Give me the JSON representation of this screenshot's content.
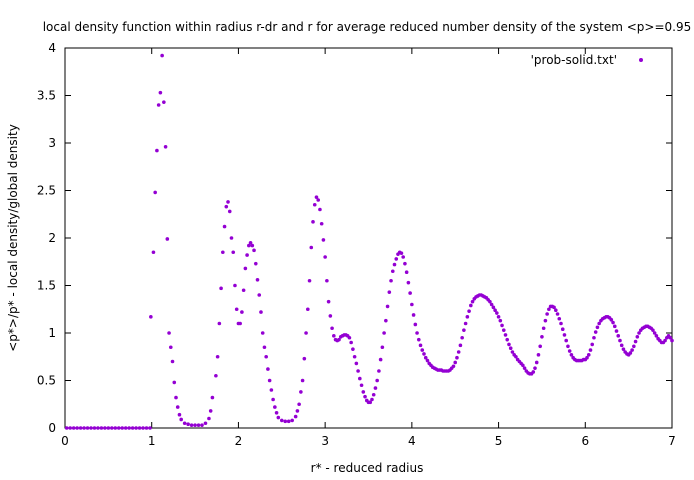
{
  "chart_data": {
    "type": "scatter",
    "title": "local density function within radius r-dr and r for average reduced number density of the system <p>=0.95",
    "xlabel": "r* - reduced radius",
    "ylabel": "<p*>/p* - local density/global density",
    "xlim": [
      0,
      7
    ],
    "ylim": [
      0,
      4
    ],
    "xticks": [
      "0",
      "1",
      "2",
      "3",
      "4",
      "5",
      "6",
      "7"
    ],
    "yticks": [
      "0",
      "0.5",
      "1",
      "1.5",
      "2",
      "2.5",
      "3",
      "3.5",
      "4"
    ],
    "grid": false,
    "legend_position": "top-right",
    "series": [
      {
        "name": "'prob-solid.txt'",
        "color": "#9400d3",
        "marker": "dot",
        "points": [
          [
            0.02,
            0
          ],
          [
            0.06,
            0
          ],
          [
            0.1,
            0
          ],
          [
            0.14,
            0
          ],
          [
            0.18,
            0
          ],
          [
            0.22,
            0
          ],
          [
            0.26,
            0
          ],
          [
            0.3,
            0
          ],
          [
            0.34,
            0
          ],
          [
            0.38,
            0
          ],
          [
            0.42,
            0
          ],
          [
            0.46,
            0
          ],
          [
            0.5,
            0
          ],
          [
            0.54,
            0
          ],
          [
            0.58,
            0
          ],
          [
            0.62,
            0
          ],
          [
            0.66,
            0
          ],
          [
            0.7,
            0
          ],
          [
            0.74,
            0
          ],
          [
            0.78,
            0
          ],
          [
            0.82,
            0
          ],
          [
            0.86,
            0
          ],
          [
            0.9,
            0
          ],
          [
            0.94,
            0
          ],
          [
            0.98,
            0
          ],
          [
            0.99,
            1.17
          ],
          [
            1.02,
            1.85
          ],
          [
            1.04,
            2.48
          ],
          [
            1.06,
            2.92
          ],
          [
            1.08,
            3.4
          ],
          [
            1.1,
            3.53
          ],
          [
            1.12,
            3.92
          ],
          [
            1.14,
            3.43
          ],
          [
            1.16,
            2.96
          ],
          [
            1.18,
            1.99
          ],
          [
            1.2,
            1.0
          ],
          [
            1.22,
            0.85
          ],
          [
            1.24,
            0.7
          ],
          [
            1.26,
            0.48
          ],
          [
            1.28,
            0.32
          ],
          [
            1.3,
            0.22
          ],
          [
            1.32,
            0.14
          ],
          [
            1.34,
            0.09
          ],
          [
            1.38,
            0.05
          ],
          [
            1.42,
            0.04
          ],
          [
            1.46,
            0.03
          ],
          [
            1.5,
            0.03
          ],
          [
            1.54,
            0.03
          ],
          [
            1.58,
            0.03
          ],
          [
            1.62,
            0.05
          ],
          [
            1.66,
            0.1
          ],
          [
            1.68,
            0.18
          ],
          [
            1.7,
            0.32
          ],
          [
            1.74,
            0.55
          ],
          [
            1.76,
            0.75
          ],
          [
            1.78,
            1.1
          ],
          [
            1.8,
            1.47
          ],
          [
            1.82,
            1.85
          ],
          [
            1.84,
            2.12
          ],
          [
            1.86,
            2.33
          ],
          [
            1.88,
            2.38
          ],
          [
            1.9,
            2.28
          ],
          [
            1.92,
            2.0
          ],
          [
            1.94,
            1.85
          ],
          [
            1.96,
            1.5
          ],
          [
            1.98,
            1.25
          ],
          [
            2.0,
            1.1
          ],
          [
            2.02,
            1.1
          ],
          [
            2.04,
            1.22
          ],
          [
            2.06,
            1.45
          ],
          [
            2.08,
            1.68
          ],
          [
            2.1,
            1.82
          ],
          [
            2.12,
            1.92
          ],
          [
            2.14,
            1.95
          ],
          [
            2.16,
            1.92
          ],
          [
            2.18,
            1.87
          ],
          [
            2.2,
            1.73
          ],
          [
            2.22,
            1.56
          ],
          [
            2.24,
            1.4
          ],
          [
            2.26,
            1.22
          ],
          [
            2.28,
            1.0
          ],
          [
            2.3,
            0.85
          ],
          [
            2.32,
            0.75
          ],
          [
            2.34,
            0.62
          ],
          [
            2.36,
            0.5
          ],
          [
            2.38,
            0.4
          ],
          [
            2.4,
            0.3
          ],
          [
            2.42,
            0.22
          ],
          [
            2.44,
            0.16
          ],
          [
            2.46,
            0.11
          ],
          [
            2.5,
            0.08
          ],
          [
            2.54,
            0.07
          ],
          [
            2.58,
            0.07
          ],
          [
            2.62,
            0.08
          ],
          [
            2.66,
            0.12
          ],
          [
            2.68,
            0.18
          ],
          [
            2.7,
            0.25
          ],
          [
            2.72,
            0.38
          ],
          [
            2.74,
            0.5
          ],
          [
            2.76,
            0.73
          ],
          [
            2.78,
            1.0
          ],
          [
            2.8,
            1.25
          ],
          [
            2.82,
            1.55
          ],
          [
            2.84,
            1.9
          ],
          [
            2.86,
            2.17
          ],
          [
            2.88,
            2.35
          ],
          [
            2.9,
            2.43
          ],
          [
            2.92,
            2.4
          ],
          [
            2.94,
            2.3
          ],
          [
            2.96,
            2.15
          ],
          [
            2.98,
            1.98
          ],
          [
            3.0,
            1.8
          ],
          [
            3.02,
            1.55
          ],
          [
            3.04,
            1.33
          ],
          [
            3.06,
            1.18
          ],
          [
            3.08,
            1.05
          ],
          [
            3.1,
            0.97
          ],
          [
            3.12,
            0.93
          ],
          [
            3.14,
            0.92
          ],
          [
            3.16,
            0.93
          ],
          [
            3.18,
            0.96
          ],
          [
            3.2,
            0.97
          ],
          [
            3.22,
            0.98
          ],
          [
            3.24,
            0.98
          ],
          [
            3.26,
            0.97
          ],
          [
            3.28,
            0.95
          ],
          [
            3.3,
            0.9
          ],
          [
            3.32,
            0.83
          ],
          [
            3.34,
            0.75
          ],
          [
            3.36,
            0.68
          ],
          [
            3.38,
            0.6
          ],
          [
            3.4,
            0.52
          ],
          [
            3.42,
            0.45
          ],
          [
            3.44,
            0.38
          ],
          [
            3.46,
            0.33
          ],
          [
            3.48,
            0.29
          ],
          [
            3.5,
            0.27
          ],
          [
            3.52,
            0.27
          ],
          [
            3.54,
            0.3
          ],
          [
            3.56,
            0.35
          ],
          [
            3.58,
            0.42
          ],
          [
            3.6,
            0.5
          ],
          [
            3.62,
            0.6
          ],
          [
            3.64,
            0.72
          ],
          [
            3.66,
            0.85
          ],
          [
            3.68,
            1.0
          ],
          [
            3.7,
            1.13
          ],
          [
            3.72,
            1.28
          ],
          [
            3.74,
            1.43
          ],
          [
            3.76,
            1.55
          ],
          [
            3.78,
            1.65
          ],
          [
            3.8,
            1.72
          ],
          [
            3.82,
            1.78
          ],
          [
            3.84,
            1.83
          ],
          [
            3.86,
            1.85
          ],
          [
            3.88,
            1.84
          ],
          [
            3.9,
            1.8
          ],
          [
            3.92,
            1.73
          ],
          [
            3.94,
            1.64
          ],
          [
            3.96,
            1.53
          ],
          [
            3.98,
            1.42
          ],
          [
            4.0,
            1.3
          ],
          [
            4.02,
            1.19
          ],
          [
            4.04,
            1.09
          ],
          [
            4.06,
            1.0
          ],
          [
            4.08,
            0.93
          ],
          [
            4.1,
            0.87
          ],
          [
            4.12,
            0.82
          ],
          [
            4.14,
            0.78
          ],
          [
            4.16,
            0.74
          ],
          [
            4.18,
            0.71
          ],
          [
            4.2,
            0.68
          ],
          [
            4.22,
            0.66
          ],
          [
            4.24,
            0.64
          ],
          [
            4.26,
            0.63
          ],
          [
            4.28,
            0.62
          ],
          [
            4.3,
            0.61
          ],
          [
            4.32,
            0.61
          ],
          [
            4.34,
            0.61
          ],
          [
            4.36,
            0.6
          ],
          [
            4.38,
            0.6
          ],
          [
            4.4,
            0.6
          ],
          [
            4.42,
            0.6
          ],
          [
            4.44,
            0.61
          ],
          [
            4.46,
            0.63
          ],
          [
            4.48,
            0.65
          ],
          [
            4.5,
            0.69
          ],
          [
            4.52,
            0.74
          ],
          [
            4.54,
            0.8
          ],
          [
            4.56,
            0.87
          ],
          [
            4.58,
            0.95
          ],
          [
            4.6,
            1.03
          ],
          [
            4.62,
            1.1
          ],
          [
            4.64,
            1.17
          ],
          [
            4.66,
            1.23
          ],
          [
            4.68,
            1.29
          ],
          [
            4.7,
            1.33
          ],
          [
            4.72,
            1.36
          ],
          [
            4.74,
            1.38
          ],
          [
            4.76,
            1.39
          ],
          [
            4.78,
            1.4
          ],
          [
            4.8,
            1.4
          ],
          [
            4.82,
            1.39
          ],
          [
            4.84,
            1.38
          ],
          [
            4.86,
            1.37
          ],
          [
            4.88,
            1.35
          ],
          [
            4.9,
            1.33
          ],
          [
            4.92,
            1.3
          ],
          [
            4.94,
            1.27
          ],
          [
            4.96,
            1.24
          ],
          [
            4.98,
            1.21
          ],
          [
            5.0,
            1.17
          ],
          [
            5.02,
            1.13
          ],
          [
            5.04,
            1.08
          ],
          [
            5.06,
            1.03
          ],
          [
            5.08,
            0.98
          ],
          [
            5.1,
            0.93
          ],
          [
            5.12,
            0.88
          ],
          [
            5.14,
            0.84
          ],
          [
            5.16,
            0.8
          ],
          [
            5.18,
            0.77
          ],
          [
            5.2,
            0.75
          ],
          [
            5.22,
            0.72
          ],
          [
            5.24,
            0.7
          ],
          [
            5.26,
            0.68
          ],
          [
            5.28,
            0.66
          ],
          [
            5.3,
            0.63
          ],
          [
            5.32,
            0.6
          ],
          [
            5.34,
            0.58
          ],
          [
            5.36,
            0.57
          ],
          [
            5.38,
            0.57
          ],
          [
            5.4,
            0.59
          ],
          [
            5.42,
            0.63
          ],
          [
            5.44,
            0.69
          ],
          [
            5.46,
            0.77
          ],
          [
            5.48,
            0.86
          ],
          [
            5.5,
            0.96
          ],
          [
            5.52,
            1.05
          ],
          [
            5.54,
            1.13
          ],
          [
            5.56,
            1.2
          ],
          [
            5.58,
            1.25
          ],
          [
            5.6,
            1.28
          ],
          [
            5.62,
            1.28
          ],
          [
            5.64,
            1.27
          ],
          [
            5.66,
            1.24
          ],
          [
            5.68,
            1.2
          ],
          [
            5.7,
            1.15
          ],
          [
            5.72,
            1.1
          ],
          [
            5.74,
            1.04
          ],
          [
            5.76,
            0.98
          ],
          [
            5.78,
            0.92
          ],
          [
            5.8,
            0.86
          ],
          [
            5.82,
            0.81
          ],
          [
            5.84,
            0.77
          ],
          [
            5.86,
            0.74
          ],
          [
            5.88,
            0.72
          ],
          [
            5.9,
            0.71
          ],
          [
            5.92,
            0.71
          ],
          [
            5.94,
            0.71
          ],
          [
            5.96,
            0.71
          ],
          [
            5.98,
            0.72
          ],
          [
            6.0,
            0.72
          ],
          [
            6.02,
            0.74
          ],
          [
            6.04,
            0.77
          ],
          [
            6.06,
            0.82
          ],
          [
            6.08,
            0.88
          ],
          [
            6.1,
            0.95
          ],
          [
            6.12,
            1.01
          ],
          [
            6.14,
            1.06
          ],
          [
            6.16,
            1.1
          ],
          [
            6.18,
            1.13
          ],
          [
            6.2,
            1.15
          ],
          [
            6.22,
            1.16
          ],
          [
            6.24,
            1.17
          ],
          [
            6.26,
            1.17
          ],
          [
            6.28,
            1.16
          ],
          [
            6.3,
            1.14
          ],
          [
            6.32,
            1.11
          ],
          [
            6.34,
            1.07
          ],
          [
            6.36,
            1.02
          ],
          [
            6.38,
            0.97
          ],
          [
            6.4,
            0.92
          ],
          [
            6.42,
            0.87
          ],
          [
            6.44,
            0.83
          ],
          [
            6.46,
            0.8
          ],
          [
            6.48,
            0.78
          ],
          [
            6.5,
            0.77
          ],
          [
            6.52,
            0.79
          ],
          [
            6.54,
            0.82
          ],
          [
            6.56,
            0.86
          ],
          [
            6.58,
            0.91
          ],
          [
            6.6,
            0.96
          ],
          [
            6.62,
            1.0
          ],
          [
            6.64,
            1.03
          ],
          [
            6.66,
            1.05
          ],
          [
            6.68,
            1.06
          ],
          [
            6.7,
            1.07
          ],
          [
            6.72,
            1.07
          ],
          [
            6.74,
            1.06
          ],
          [
            6.76,
            1.05
          ],
          [
            6.78,
            1.03
          ],
          [
            6.8,
            1.0
          ],
          [
            6.82,
            0.97
          ],
          [
            6.84,
            0.94
          ],
          [
            6.86,
            0.92
          ],
          [
            6.88,
            0.9
          ],
          [
            6.9,
            0.9
          ],
          [
            6.92,
            0.92
          ],
          [
            6.94,
            0.95
          ],
          [
            6.96,
            0.97
          ],
          [
            6.98,
            0.95
          ],
          [
            7.0,
            0.92
          ]
        ]
      }
    ]
  }
}
